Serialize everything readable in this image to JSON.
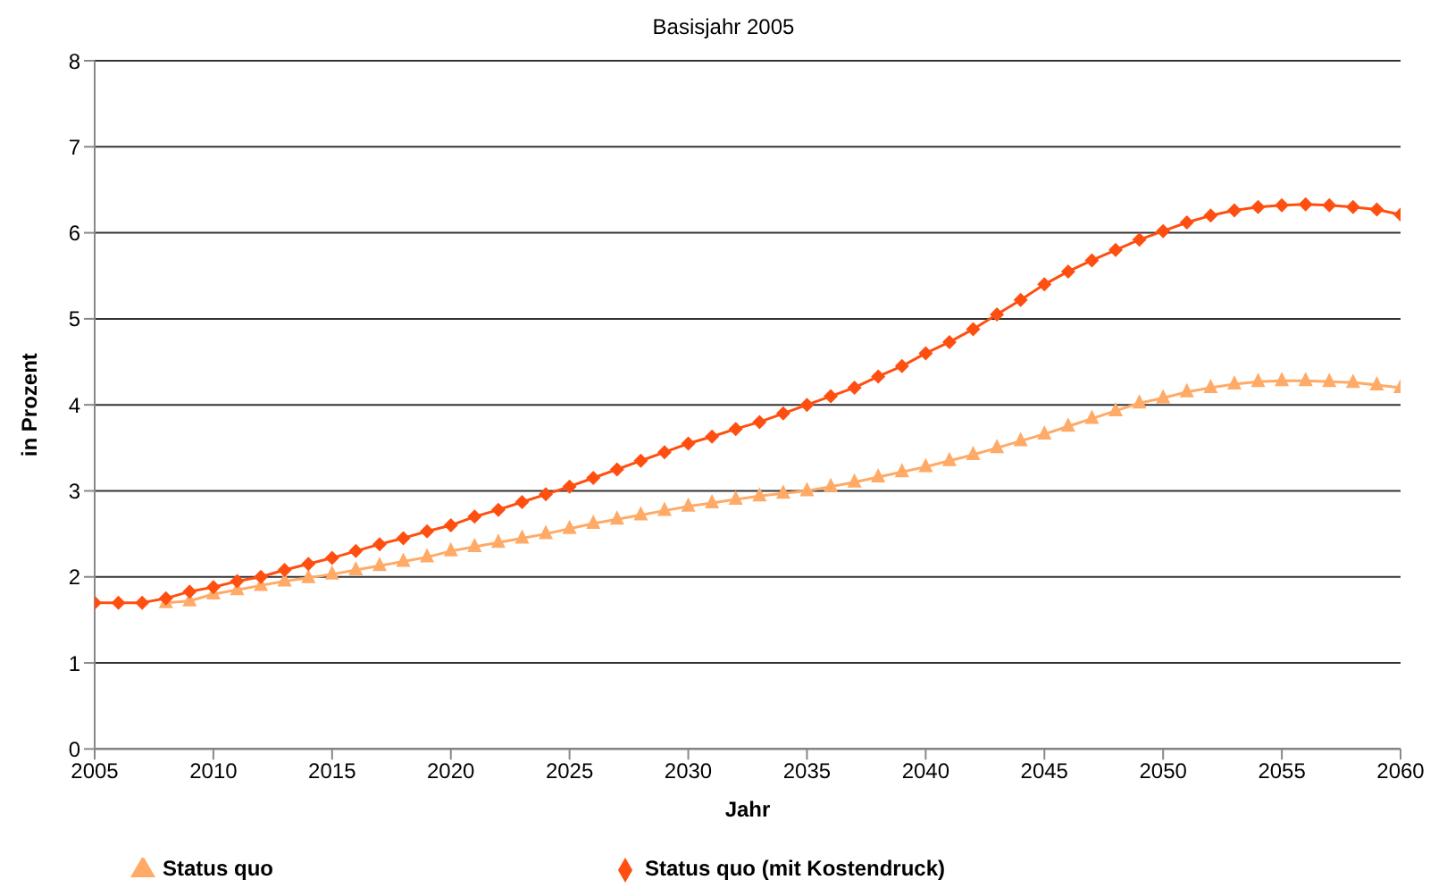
{
  "chart_data": {
    "type": "line",
    "title": "Basisjahr 2005",
    "xlabel": "Jahr",
    "ylabel": "in Prozent",
    "x": [
      2005,
      2006,
      2007,
      2008,
      2009,
      2010,
      2011,
      2012,
      2013,
      2014,
      2015,
      2016,
      2017,
      2018,
      2019,
      2020,
      2021,
      2022,
      2023,
      2024,
      2025,
      2026,
      2027,
      2028,
      2029,
      2030,
      2031,
      2032,
      2033,
      2034,
      2035,
      2036,
      2037,
      2038,
      2039,
      2040,
      2041,
      2042,
      2043,
      2044,
      2045,
      2046,
      2047,
      2048,
      2049,
      2050,
      2051,
      2052,
      2053,
      2054,
      2055,
      2056,
      2057,
      2058,
      2059,
      2060
    ],
    "series": [
      {
        "name": "Status quo",
        "color": "#ffaa66",
        "marker": "triangle",
        "values": [
          null,
          null,
          null,
          1.7,
          1.72,
          1.8,
          1.85,
          1.9,
          1.95,
          1.99,
          2.03,
          2.08,
          2.13,
          2.18,
          2.23,
          2.3,
          2.35,
          2.4,
          2.45,
          2.5,
          2.56,
          2.62,
          2.67,
          2.72,
          2.77,
          2.82,
          2.86,
          2.9,
          2.94,
          2.97,
          3.0,
          3.05,
          3.1,
          3.16,
          3.22,
          3.28,
          3.35,
          3.42,
          3.5,
          3.58,
          3.66,
          3.75,
          3.84,
          3.93,
          4.02,
          4.08,
          4.15,
          4.2,
          4.24,
          4.27,
          4.28,
          4.28,
          4.27,
          4.26,
          4.23,
          4.2
        ]
      },
      {
        "name": "Status quo (mit Kostendruck)",
        "color": "#ff4f10",
        "marker": "diamond",
        "values": [
          1.7,
          1.7,
          1.7,
          1.75,
          1.83,
          1.88,
          1.95,
          2.0,
          2.08,
          2.15,
          2.22,
          2.3,
          2.38,
          2.45,
          2.53,
          2.6,
          2.7,
          2.78,
          2.87,
          2.96,
          3.05,
          3.15,
          3.25,
          3.35,
          3.45,
          3.55,
          3.63,
          3.72,
          3.8,
          3.9,
          4.0,
          4.1,
          4.2,
          4.33,
          4.45,
          4.6,
          4.73,
          4.88,
          5.05,
          5.22,
          5.4,
          5.55,
          5.68,
          5.8,
          5.92,
          6.02,
          6.12,
          6.2,
          6.26,
          6.3,
          6.32,
          6.33,
          6.32,
          6.3,
          6.27,
          6.21
        ]
      }
    ],
    "xlim": [
      2005,
      2060
    ],
    "xticks": [
      2005,
      2010,
      2015,
      2020,
      2025,
      2030,
      2035,
      2040,
      2045,
      2050,
      2055,
      2060
    ],
    "ylim": [
      0,
      8
    ],
    "yticks": [
      0,
      1,
      2,
      3,
      4,
      5,
      6,
      7,
      8
    ],
    "grid": "y",
    "legend": "bottom",
    "line_style": "solid"
  }
}
